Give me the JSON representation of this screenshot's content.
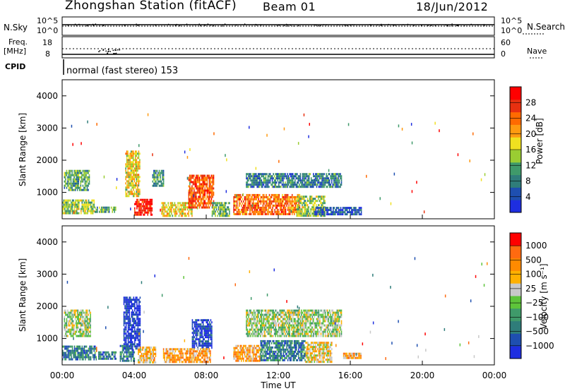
{
  "header": {
    "station": "Zhongshan Station (fitACF)",
    "beam": "Beam 01",
    "date": "18/Jun/2012"
  },
  "left_labels": {
    "nsky": "N.Sky",
    "freq": "Freq.",
    "freq_unit": "[MHz]",
    "cpid": "CPID"
  },
  "right_labels": {
    "nsearch": "N.Search",
    "nave": "Nave"
  },
  "strip_ticks": {
    "nsky_left": [
      "10^5",
      "10^0"
    ],
    "nsky_right": [
      "10^5",
      "10^0"
    ],
    "freq_left": [
      "18",
      "8"
    ],
    "nave_right": [
      "60",
      "0"
    ]
  },
  "cpid_text": "normal (fast stereo) 153",
  "colors": {
    "scatter": "#999999",
    "background": "#ffffff"
  },
  "chart_data": [
    {
      "type": "heatmap",
      "name": "power-panel",
      "ylabel": "Slant Range [km]",
      "xlabel": "",
      "ylim": [
        180,
        4500
      ],
      "xlim": [
        0,
        24
      ],
      "yticks": [
        "1000",
        "2000",
        "3000",
        "4000"
      ],
      "colorbar": {
        "label": "Power [dB]",
        "ticks": [
          "4",
          "8",
          "12",
          "16",
          "20",
          "24",
          "28"
        ],
        "colors": [
          "#1e2ee0",
          "#1e4fb0",
          "#2f7d7a",
          "#3f9a6a",
          "#9acd32",
          "#f0e020",
          "#ff9a10",
          "#ff6a00",
          "#e83010",
          "#ff0000"
        ]
      },
      "bands": [
        {
          "t0": 0.0,
          "t1": 1.8,
          "r0": 320,
          "r1": 780,
          "level": 0.45
        },
        {
          "t0": 0.1,
          "t1": 1.5,
          "r0": 1100,
          "r1": 1700,
          "level": 0.35
        },
        {
          "t0": 1.8,
          "t1": 3.0,
          "r0": 380,
          "r1": 560,
          "level": 0.35
        },
        {
          "t0": 3.5,
          "t1": 4.3,
          "r0": 900,
          "r1": 2300,
          "level": 0.55
        },
        {
          "t0": 4.0,
          "t1": 5.0,
          "r0": 280,
          "r1": 800,
          "level": 0.9
        },
        {
          "t0": 5.0,
          "t1": 5.6,
          "r0": 1200,
          "r1": 1700,
          "level": 0.3
        },
        {
          "t0": 5.5,
          "t1": 7.2,
          "r0": 300,
          "r1": 700,
          "level": 0.55
        },
        {
          "t0": 7.0,
          "t1": 8.4,
          "r0": 500,
          "r1": 1550,
          "level": 0.8
        },
        {
          "t0": 8.3,
          "t1": 9.3,
          "r0": 300,
          "r1": 700,
          "level": 0.4
        },
        {
          "t0": 9.5,
          "t1": 13.2,
          "r0": 300,
          "r1": 950,
          "level": 0.75
        },
        {
          "t0": 10.2,
          "t1": 15.5,
          "r0": 1150,
          "r1": 1600,
          "level": 0.25
        },
        {
          "t0": 13.0,
          "t1": 14.6,
          "r0": 300,
          "r1": 900,
          "level": 0.45
        },
        {
          "t0": 14.0,
          "t1": 16.6,
          "r0": 300,
          "r1": 550,
          "level": 0.15
        }
      ]
    },
    {
      "type": "heatmap",
      "name": "velocity-panel",
      "ylabel": "Slant Range [km]",
      "xlabel": "Time UT",
      "ylim": [
        180,
        4500
      ],
      "xlim": [
        0,
        24
      ],
      "yticks": [
        "1000",
        "2000",
        "3000",
        "4000"
      ],
      "xticks": [
        "00:00",
        "04:00",
        "08:00",
        "12:00",
        "16:00",
        "20:00",
        "00:00"
      ],
      "colorbar": {
        "label": "Velocity [m s⁻¹]",
        "ticks": [
          "1000",
          "500",
          "100",
          "25",
          "−25",
          "−100",
          "−500",
          "−1000"
        ],
        "colors": [
          "#1e2ee0",
          "#1e4fb0",
          "#2f7d7a",
          "#3f9a6a",
          "#5ec43a",
          "#c8c8c8",
          "#ffb000",
          "#ff8a00",
          "#ff6a10",
          "#ff0000"
        ]
      },
      "bands": [
        {
          "t0": 0.0,
          "t1": 1.9,
          "r0": 320,
          "r1": 780,
          "level": 0.25
        },
        {
          "t0": 0.1,
          "t1": 1.6,
          "r0": 1100,
          "r1": 1900,
          "level": 0.5
        },
        {
          "t0": 2.0,
          "t1": 3.0,
          "r0": 380,
          "r1": 600,
          "level": 0.25
        },
        {
          "t0": 3.4,
          "t1": 4.3,
          "r0": 700,
          "r1": 2300,
          "level": 0.05
        },
        {
          "t0": 3.2,
          "t1": 4.0,
          "r0": 300,
          "r1": 800,
          "level": 0.25
        },
        {
          "t0": 4.2,
          "t1": 5.2,
          "r0": 280,
          "r1": 750,
          "level": 0.65
        },
        {
          "t0": 5.6,
          "t1": 7.0,
          "r0": 300,
          "r1": 700,
          "level": 0.7
        },
        {
          "t0": 7.2,
          "t1": 8.3,
          "r0": 700,
          "r1": 1600,
          "level": 0.1
        },
        {
          "t0": 7.0,
          "t1": 8.2,
          "r0": 300,
          "r1": 700,
          "level": 0.7
        },
        {
          "t0": 9.5,
          "t1": 11.0,
          "r0": 300,
          "r1": 800,
          "level": 0.7
        },
        {
          "t0": 11.0,
          "t1": 13.5,
          "r0": 300,
          "r1": 950,
          "level": 0.25
        },
        {
          "t0": 10.2,
          "t1": 15.5,
          "r0": 1100,
          "r1": 1900,
          "level": 0.5
        },
        {
          "t0": 13.5,
          "t1": 15.0,
          "r0": 300,
          "r1": 900,
          "level": 0.6
        },
        {
          "t0": 15.6,
          "t1": 16.6,
          "r0": 380,
          "r1": 560,
          "level": 0.7
        }
      ]
    }
  ]
}
